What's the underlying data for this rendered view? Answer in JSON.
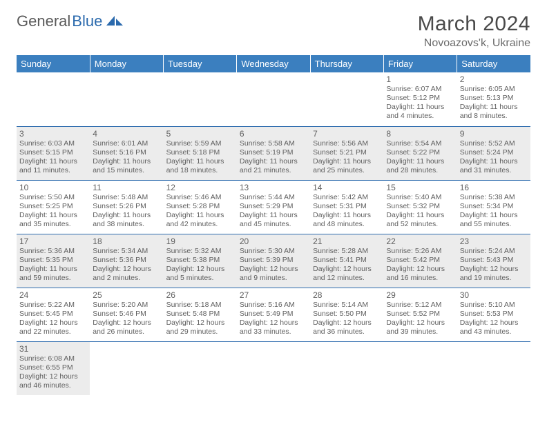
{
  "logo": {
    "part1": "General",
    "part2": "Blue"
  },
  "title": "March 2024",
  "location": "Novoazovs'k, Ukraine",
  "colors": {
    "header_bg": "#3b7fbf",
    "header_text": "#ffffff",
    "border": "#2b6aad",
    "alt_row": "#ececec",
    "text": "#5f5f5f",
    "title_color": "#4a4a4a",
    "logo_gray": "#5a5a5a",
    "logo_blue": "#2b6aad"
  },
  "weekdays": [
    "Sunday",
    "Monday",
    "Tuesday",
    "Wednesday",
    "Thursday",
    "Friday",
    "Saturday"
  ],
  "weeks": [
    [
      null,
      null,
      null,
      null,
      null,
      {
        "n": "1",
        "sr": "Sunrise: 6:07 AM",
        "ss": "Sunset: 5:12 PM",
        "d1": "Daylight: 11 hours",
        "d2": "and 4 minutes."
      },
      {
        "n": "2",
        "sr": "Sunrise: 6:05 AM",
        "ss": "Sunset: 5:13 PM",
        "d1": "Daylight: 11 hours",
        "d2": "and 8 minutes."
      }
    ],
    [
      {
        "n": "3",
        "sr": "Sunrise: 6:03 AM",
        "ss": "Sunset: 5:15 PM",
        "d1": "Daylight: 11 hours",
        "d2": "and 11 minutes."
      },
      {
        "n": "4",
        "sr": "Sunrise: 6:01 AM",
        "ss": "Sunset: 5:16 PM",
        "d1": "Daylight: 11 hours",
        "d2": "and 15 minutes."
      },
      {
        "n": "5",
        "sr": "Sunrise: 5:59 AM",
        "ss": "Sunset: 5:18 PM",
        "d1": "Daylight: 11 hours",
        "d2": "and 18 minutes."
      },
      {
        "n": "6",
        "sr": "Sunrise: 5:58 AM",
        "ss": "Sunset: 5:19 PM",
        "d1": "Daylight: 11 hours",
        "d2": "and 21 minutes."
      },
      {
        "n": "7",
        "sr": "Sunrise: 5:56 AM",
        "ss": "Sunset: 5:21 PM",
        "d1": "Daylight: 11 hours",
        "d2": "and 25 minutes."
      },
      {
        "n": "8",
        "sr": "Sunrise: 5:54 AM",
        "ss": "Sunset: 5:22 PM",
        "d1": "Daylight: 11 hours",
        "d2": "and 28 minutes."
      },
      {
        "n": "9",
        "sr": "Sunrise: 5:52 AM",
        "ss": "Sunset: 5:24 PM",
        "d1": "Daylight: 11 hours",
        "d2": "and 31 minutes."
      }
    ],
    [
      {
        "n": "10",
        "sr": "Sunrise: 5:50 AM",
        "ss": "Sunset: 5:25 PM",
        "d1": "Daylight: 11 hours",
        "d2": "and 35 minutes."
      },
      {
        "n": "11",
        "sr": "Sunrise: 5:48 AM",
        "ss": "Sunset: 5:26 PM",
        "d1": "Daylight: 11 hours",
        "d2": "and 38 minutes."
      },
      {
        "n": "12",
        "sr": "Sunrise: 5:46 AM",
        "ss": "Sunset: 5:28 PM",
        "d1": "Daylight: 11 hours",
        "d2": "and 42 minutes."
      },
      {
        "n": "13",
        "sr": "Sunrise: 5:44 AM",
        "ss": "Sunset: 5:29 PM",
        "d1": "Daylight: 11 hours",
        "d2": "and 45 minutes."
      },
      {
        "n": "14",
        "sr": "Sunrise: 5:42 AM",
        "ss": "Sunset: 5:31 PM",
        "d1": "Daylight: 11 hours",
        "d2": "and 48 minutes."
      },
      {
        "n": "15",
        "sr": "Sunrise: 5:40 AM",
        "ss": "Sunset: 5:32 PM",
        "d1": "Daylight: 11 hours",
        "d2": "and 52 minutes."
      },
      {
        "n": "16",
        "sr": "Sunrise: 5:38 AM",
        "ss": "Sunset: 5:34 PM",
        "d1": "Daylight: 11 hours",
        "d2": "and 55 minutes."
      }
    ],
    [
      {
        "n": "17",
        "sr": "Sunrise: 5:36 AM",
        "ss": "Sunset: 5:35 PM",
        "d1": "Daylight: 11 hours",
        "d2": "and 59 minutes."
      },
      {
        "n": "18",
        "sr": "Sunrise: 5:34 AM",
        "ss": "Sunset: 5:36 PM",
        "d1": "Daylight: 12 hours",
        "d2": "and 2 minutes."
      },
      {
        "n": "19",
        "sr": "Sunrise: 5:32 AM",
        "ss": "Sunset: 5:38 PM",
        "d1": "Daylight: 12 hours",
        "d2": "and 5 minutes."
      },
      {
        "n": "20",
        "sr": "Sunrise: 5:30 AM",
        "ss": "Sunset: 5:39 PM",
        "d1": "Daylight: 12 hours",
        "d2": "and 9 minutes."
      },
      {
        "n": "21",
        "sr": "Sunrise: 5:28 AM",
        "ss": "Sunset: 5:41 PM",
        "d1": "Daylight: 12 hours",
        "d2": "and 12 minutes."
      },
      {
        "n": "22",
        "sr": "Sunrise: 5:26 AM",
        "ss": "Sunset: 5:42 PM",
        "d1": "Daylight: 12 hours",
        "d2": "and 16 minutes."
      },
      {
        "n": "23",
        "sr": "Sunrise: 5:24 AM",
        "ss": "Sunset: 5:43 PM",
        "d1": "Daylight: 12 hours",
        "d2": "and 19 minutes."
      }
    ],
    [
      {
        "n": "24",
        "sr": "Sunrise: 5:22 AM",
        "ss": "Sunset: 5:45 PM",
        "d1": "Daylight: 12 hours",
        "d2": "and 22 minutes."
      },
      {
        "n": "25",
        "sr": "Sunrise: 5:20 AM",
        "ss": "Sunset: 5:46 PM",
        "d1": "Daylight: 12 hours",
        "d2": "and 26 minutes."
      },
      {
        "n": "26",
        "sr": "Sunrise: 5:18 AM",
        "ss": "Sunset: 5:48 PM",
        "d1": "Daylight: 12 hours",
        "d2": "and 29 minutes."
      },
      {
        "n": "27",
        "sr": "Sunrise: 5:16 AM",
        "ss": "Sunset: 5:49 PM",
        "d1": "Daylight: 12 hours",
        "d2": "and 33 minutes."
      },
      {
        "n": "28",
        "sr": "Sunrise: 5:14 AM",
        "ss": "Sunset: 5:50 PM",
        "d1": "Daylight: 12 hours",
        "d2": "and 36 minutes."
      },
      {
        "n": "29",
        "sr": "Sunrise: 5:12 AM",
        "ss": "Sunset: 5:52 PM",
        "d1": "Daylight: 12 hours",
        "d2": "and 39 minutes."
      },
      {
        "n": "30",
        "sr": "Sunrise: 5:10 AM",
        "ss": "Sunset: 5:53 PM",
        "d1": "Daylight: 12 hours",
        "d2": "and 43 minutes."
      }
    ],
    [
      {
        "n": "31",
        "sr": "Sunrise: 6:08 AM",
        "ss": "Sunset: 6:55 PM",
        "d1": "Daylight: 12 hours",
        "d2": "and 46 minutes."
      },
      null,
      null,
      null,
      null,
      null,
      null
    ]
  ]
}
